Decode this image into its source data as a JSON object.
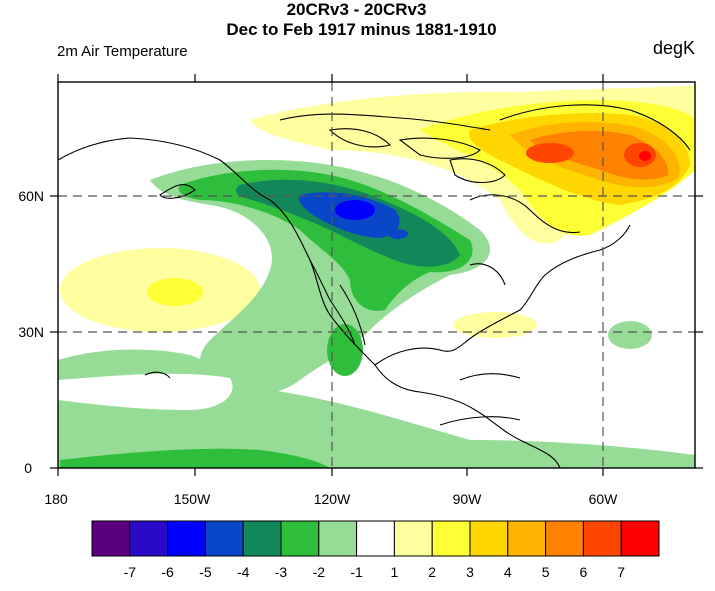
{
  "title_line1": "20CRv3 - 20CRv3",
  "title_line2": "Dec to Feb 1917 minus 1881-1910",
  "left_label": "2m Air Temperature",
  "right_label": "degK",
  "lon_ticks": [
    "180",
    "150W",
    "120W",
    "90W",
    "60W"
  ],
  "lat_ticks": [
    "60N",
    "30N",
    "0"
  ],
  "colorbar": {
    "colors": [
      "#5a007f",
      "#2a0ac8",
      "#0000ff",
      "#0a46c8",
      "#12885a",
      "#2fbe3c",
      "#96dc96",
      "#ffffff",
      "#ffffa0",
      "#ffff36",
      "#ffd600",
      "#ffb400",
      "#ff8200",
      "#ff4600",
      "#ff0000"
    ],
    "labels": [
      "-7",
      "-6",
      "-5",
      "-4",
      "-3",
      "-2",
      "-1",
      "1",
      "2",
      "3",
      "4",
      "5",
      "6",
      "7"
    ]
  }
}
